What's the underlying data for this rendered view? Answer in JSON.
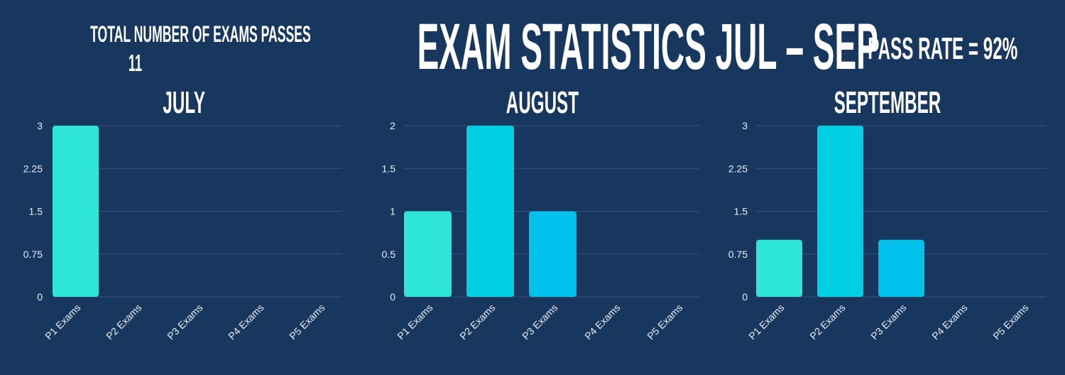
{
  "header": {
    "total_label": "TOTAL NUMBER OF EXAMS PASSES",
    "total_value": "11",
    "title": "EXAM STATISTICS JUL – SEP",
    "pass_rate": "PASS RATE = 92%"
  },
  "colors": {
    "background": "#17375e",
    "series": [
      "#2ee6d6",
      "#00d0e2",
      "#00c0ec",
      "#00b0f0",
      "#00a0f0"
    ],
    "grid": "#35557e"
  },
  "chart_data": [
    {
      "type": "bar",
      "title": "JULY",
      "categories": [
        "P1 Exams",
        "P2 Exams",
        "P3 Exams",
        "P4 Exams",
        "P5 Exams"
      ],
      "values": [
        3,
        0,
        0,
        0,
        0
      ],
      "yticks": [
        "0",
        "0.75",
        "1.5",
        "2.25",
        "3"
      ],
      "ylim": [
        0,
        3
      ],
      "grid": true
    },
    {
      "type": "bar",
      "title": "AUGUST",
      "categories": [
        "P1 Exams",
        "P2 Exams",
        "P3 Exams",
        "P4 Exams",
        "P5 Exams"
      ],
      "values": [
        1,
        2,
        1,
        0,
        0
      ],
      "yticks": [
        "0",
        "0.5",
        "1",
        "1.5",
        "2"
      ],
      "ylim": [
        0,
        2
      ],
      "grid": true
    },
    {
      "type": "bar",
      "title": "SEPTEMBER",
      "categories": [
        "P1 Exams",
        "P2 Exams",
        "P3 Exams",
        "P4 Exams",
        "P5 Exams"
      ],
      "values": [
        1,
        3,
        1,
        0,
        0
      ],
      "yticks": [
        "0",
        "0.75",
        "1.5",
        "2.25",
        "3"
      ],
      "ylim": [
        0,
        3
      ],
      "grid": true
    }
  ]
}
